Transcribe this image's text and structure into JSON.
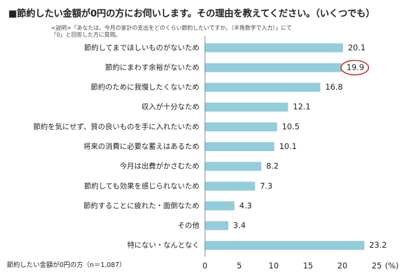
{
  "title": "■節約したい金額が0円の方にお伺いします。その理由を教えてください。（いくつでも）",
  "note": {
    "line1": "<説明>「あなたは、今月の家計の支出をどのくらい節約したいですか。（半角数字で入力）」にて",
    "line2": "「0」と回答した方に質問。"
  },
  "sample_label": "節約したい金額が0円の方（n＝1,087）",
  "chart_data": {
    "type": "bar",
    "orientation": "horizontal",
    "title": "■節約したい金額が0円の方にお伺いします。その理由を教えてください。（いくつでも）",
    "categories": [
      "節約してまでほしいものがないため",
      "節約にまわす余裕がないため",
      "節約のために我慢したくないため",
      "収入が十分なため",
      "節約を気にせず、質の良いものを手に入れたいため",
      "将来の消費に必要な蓄えはあるため",
      "今月は出費がかさむため",
      "節約しても効果を感じられないため",
      "節約することに疲れた・面倒なため",
      "その他",
      "特にない・なんとなく"
    ],
    "values": [
      20.1,
      19.9,
      16.8,
      12.1,
      10.5,
      10.1,
      8.2,
      7.3,
      4.3,
      3.4,
      23.2
    ],
    "value_labels": [
      "20.1",
      "19.9",
      "16.8",
      "12.1",
      "10.5",
      "10.1",
      "8.2",
      "7.3",
      "4.3",
      "3.4",
      "23.2"
    ],
    "xlim": [
      0,
      25
    ],
    "xticks": [
      0,
      5,
      10,
      15,
      20,
      25
    ],
    "xtick_labels": [
      "0",
      "5",
      "10",
      "15",
      "20",
      "25"
    ],
    "x_unit": "(%)",
    "highlighted_category": "節約にまわす余裕がないため",
    "bar_color": "#92cddc",
    "highlight_color": "#c0392b",
    "grid": false
  }
}
